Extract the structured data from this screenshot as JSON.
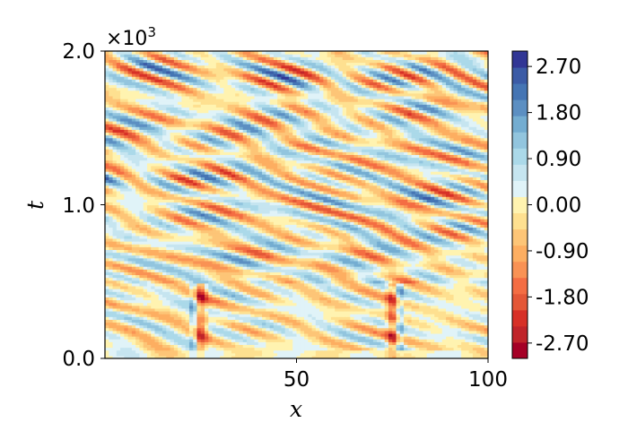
{
  "chart_data": {
    "type": "heatmap",
    "xlabel": "x",
    "ylabel": "t",
    "xlim": [
      0,
      100
    ],
    "ylim": [
      0,
      2000
    ],
    "x_ticks": [
      {
        "value": 50,
        "label": "50"
      },
      {
        "value": 100,
        "label": "100"
      }
    ],
    "y_ticks": [
      {
        "value": 0,
        "label": "0.0"
      },
      {
        "value": 1000,
        "label": "1.0"
      },
      {
        "value": 2000,
        "label": "2.0"
      }
    ],
    "y_exponent": {
      "prefix": "×10",
      "power": "3"
    },
    "colorbar": {
      "colormap": "RdYlBu",
      "range": [
        -3.0,
        3.0
      ],
      "ticks": [
        {
          "value": 2.7,
          "label": "2.70"
        },
        {
          "value": 1.8,
          "label": "1.80"
        },
        {
          "value": 0.9,
          "label": "0.90"
        },
        {
          "value": 0.0,
          "label": "0.00"
        },
        {
          "value": -0.9,
          "label": "-0.90"
        },
        {
          "value": -1.8,
          "label": "-1.80"
        },
        {
          "value": -2.7,
          "label": "-2.70"
        }
      ],
      "level_colors": [
        "#a50026",
        "#c0242a",
        "#d73027",
        "#e45737",
        "#f46d43",
        "#f99254",
        "#fdae61",
        "#fdc577",
        "#fee090",
        "#fff3b0",
        "#e0f3f8",
        "#c6e5f0",
        "#abd9e9",
        "#92c5de",
        "#74add1",
        "#5c8fc2",
        "#4575b4",
        "#3b5ba6",
        "#313695"
      ]
    },
    "features": [
      {
        "description": "vertical stripes near x≈25 and x≈75",
        "t_range": [
          0,
          500
        ]
      }
    ]
  }
}
